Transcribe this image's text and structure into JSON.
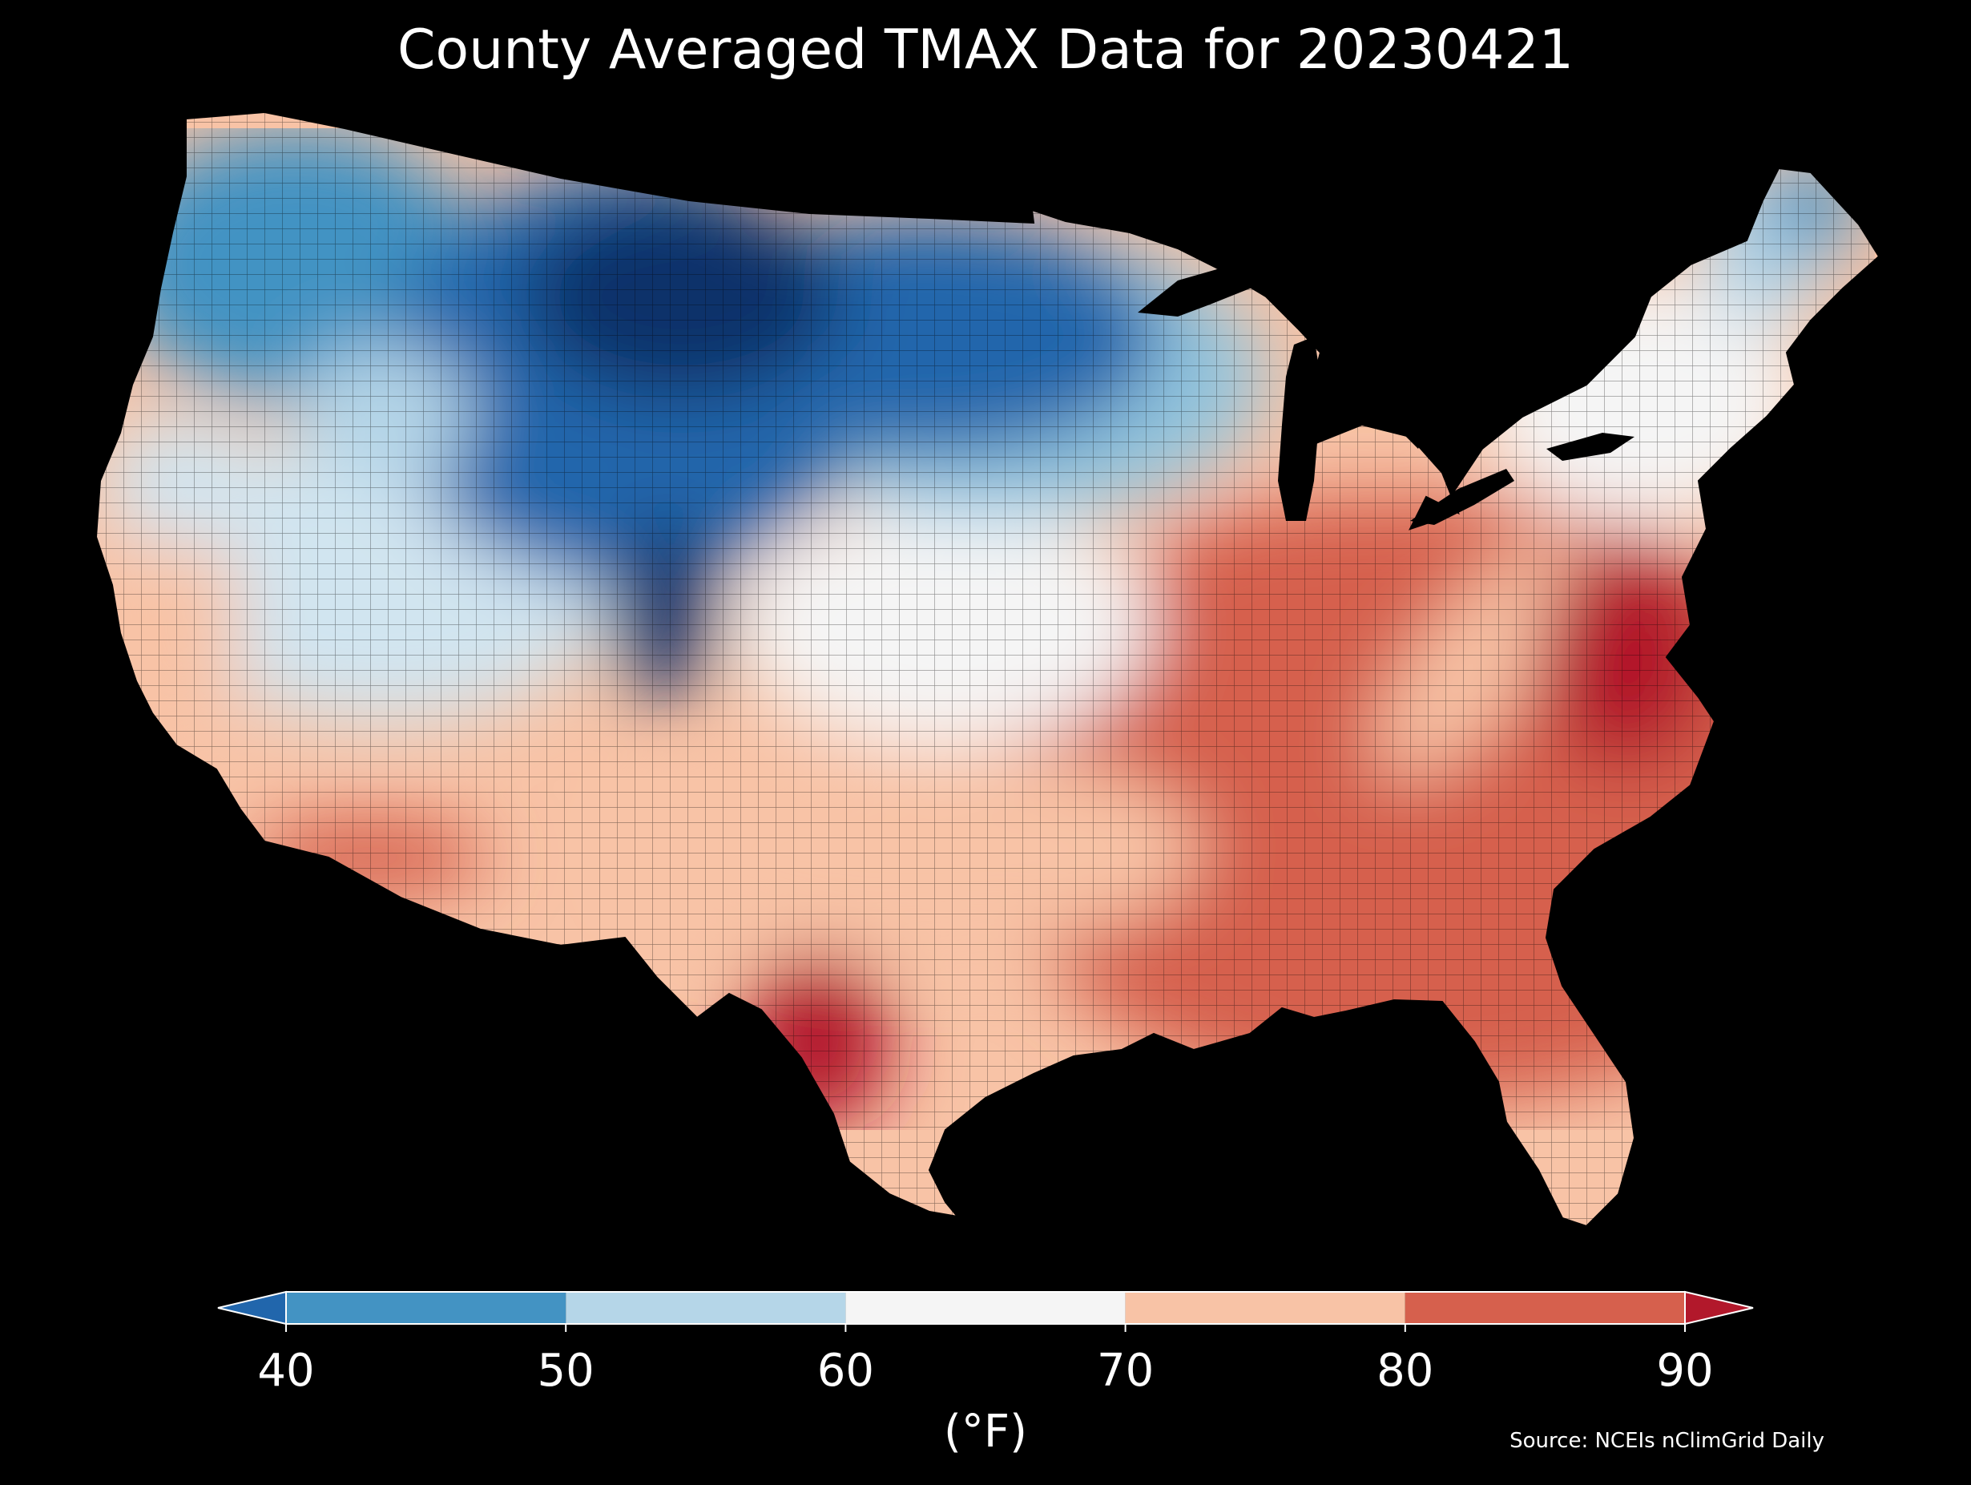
{
  "title": "County Averaged TMAX Data for 20230421",
  "colorbar": {
    "label": "(°F)",
    "ticks": [
      "40",
      "50",
      "60",
      "70",
      "80",
      "90"
    ],
    "bins": [
      {
        "from": 40,
        "to": 50,
        "color": "#4393c3"
      },
      {
        "from": 50,
        "to": 60,
        "color": "#b5d6e8"
      },
      {
        "from": 60,
        "to": 70,
        "color": "#f5f5f5"
      },
      {
        "from": 70,
        "to": 80,
        "color": "#f8c3a6"
      },
      {
        "from": 80,
        "to": 90,
        "color": "#d6604d"
      }
    ],
    "under_color": "#2166ac",
    "over_color": "#b2182b",
    "extend": "both"
  },
  "source": "Source: NCEIs nClimGrid Daily",
  "map": {
    "region": "Contiguous United States",
    "unit": "county",
    "variable": "TMAX",
    "palette": "RdBu_r",
    "regional_pattern": [
      {
        "region": "Northern Rockies and Northern Plains",
        "color": "#08306b"
      },
      {
        "region": "Pacific Northwest and Upper Midwest",
        "color": "#2166ac"
      },
      {
        "region": "Great Basin and Central Plains",
        "color": "#b5d6e8"
      },
      {
        "region": "Northeast and Great Lakes",
        "color": "#f5f5f5"
      },
      {
        "region": "California coast and Southern Plains",
        "color": "#f8c3a6"
      },
      {
        "region": "Southeast, Ohio Valley and Mid-Atlantic",
        "color": "#d6604d"
      },
      {
        "region": "South Texas and Virginia–Carolina",
        "color": "#b2182b"
      }
    ]
  }
}
